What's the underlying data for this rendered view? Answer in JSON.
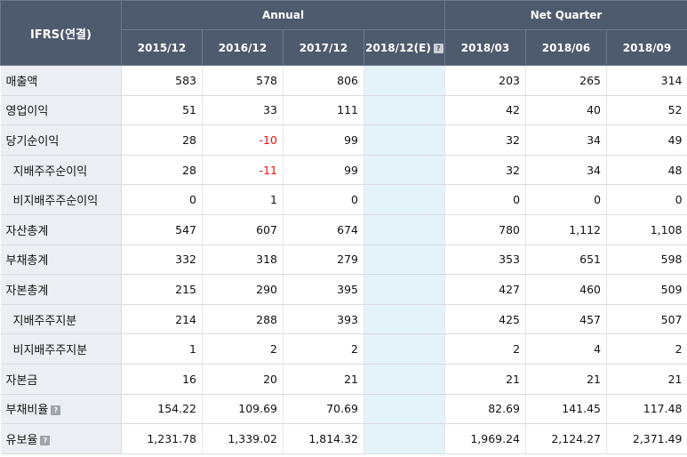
{
  "header": {
    "corner": "IFRS(연결)",
    "annual_label": "Annual",
    "quarter_label": "Net Quarter",
    "periods": [
      "2015/12",
      "2016/12",
      "2017/12",
      "2018/12(E)",
      "2018/03",
      "2018/06",
      "2018/09"
    ]
  },
  "rows": [
    {
      "label": "매출액",
      "values": [
        "583",
        "578",
        "806",
        "",
        "203",
        "265",
        "314"
      ]
    },
    {
      "label": "영업이익",
      "values": [
        "51",
        "33",
        "111",
        "",
        "42",
        "40",
        "52"
      ]
    },
    {
      "label": "당기순이익",
      "values": [
        "28",
        "-10",
        "99",
        "",
        "32",
        "34",
        "49"
      ]
    },
    {
      "label": "지배주주순이익",
      "values": [
        "28",
        "-11",
        "99",
        "",
        "32",
        "34",
        "48"
      ]
    },
    {
      "label": "비지배주주순이익",
      "values": [
        "0",
        "1",
        "0",
        "",
        "0",
        "0",
        "0"
      ]
    },
    {
      "label": "자산총계",
      "values": [
        "547",
        "607",
        "674",
        "",
        "780",
        "1,112",
        "1,108"
      ]
    },
    {
      "label": "부채총계",
      "values": [
        "332",
        "318",
        "279",
        "",
        "353",
        "651",
        "598"
      ]
    },
    {
      "label": "자본총계",
      "values": [
        "215",
        "290",
        "395",
        "",
        "427",
        "460",
        "509"
      ]
    },
    {
      "label": "지배주주지분",
      "values": [
        "214",
        "288",
        "393",
        "",
        "425",
        "457",
        "507"
      ]
    },
    {
      "label": "비지배주주지분",
      "values": [
        "1",
        "2",
        "2",
        "",
        "2",
        "4",
        "2"
      ]
    },
    {
      "label": "자본금",
      "values": [
        "16",
        "20",
        "21",
        "",
        "21",
        "21",
        "21"
      ]
    },
    {
      "label": "부채비율",
      "values": [
        "154.22",
        "109.69",
        "70.69",
        "",
        "82.69",
        "141.45",
        "117.48"
      ]
    },
    {
      "label": "유보율",
      "values": [
        "1,231.78",
        "1,339.02",
        "1,814.32",
        "",
        "1,969.24",
        "2,124.27",
        "2,371.49"
      ]
    }
  ],
  "icons": {
    "info": "?"
  },
  "colors": {
    "header_bg": "#4e5b6e",
    "label_bg": "#ebeef2",
    "estimate_bg": "#e4f3f8",
    "negative": "#ee1111"
  }
}
